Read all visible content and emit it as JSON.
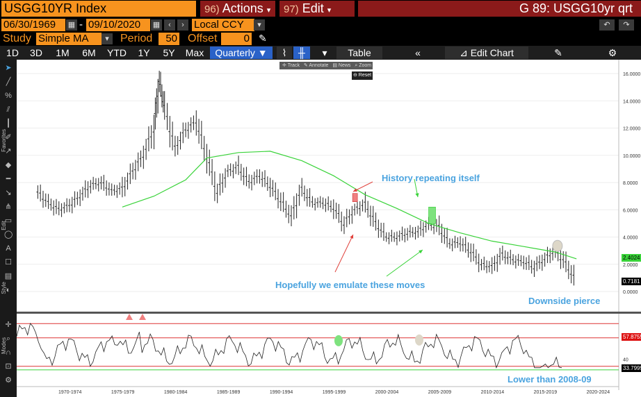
{
  "header": {
    "ticker": "USGG10YR Index",
    "actions_num": "96)",
    "actions_label": "Actions",
    "edit_num": "97)",
    "edit_label": "Edit",
    "screen_title": "G 89: USGG10yr qrt"
  },
  "dates": {
    "start": "06/30/1969",
    "sep": "-",
    "end": "09/10/2020",
    "currency": "Local CCY"
  },
  "study": {
    "label": "Study",
    "value": "Simple MA",
    "period_label": "Period",
    "period_value": "50",
    "offset_label": "Offset",
    "offset_value": "0"
  },
  "timeframes": [
    "1D",
    "3D",
    "1M",
    "6M",
    "YTD",
    "1Y",
    "5Y",
    "Max"
  ],
  "frequency": "Quarterly",
  "table_label": "Table",
  "edit_chart_label": "Edit Chart",
  "minitoolbar": {
    "track": "Track",
    "annotate": "Annotate",
    "news": "News",
    "zoom": "Zoom",
    "reset": "Reset"
  },
  "left_tool_labels": {
    "favorites": "Favorites",
    "edit": "Edit",
    "style": "Style",
    "modes": "Modes"
  },
  "annotations": {
    "history": "History repeating itself",
    "hopefully": "Hopefully we emulate these moves",
    "downside": "Downside pierce",
    "lower": "Lower than 2008-09"
  },
  "price_axis": [
    "16.0000",
    "14.0000",
    "12.0000",
    "10.0000",
    "8.0000",
    "6.0000",
    "4.0000",
    "2.0000",
    "0.0000"
  ],
  "last_price_badges": {
    "ma": "2.4024",
    "price": "0.7181"
  },
  "rsi_badges": {
    "upper": "57.8755",
    "lower": "33.7999",
    "mid_tick": "40"
  },
  "x_axis_labels": [
    "1970-1974",
    "1975-1979",
    "1980-1984",
    "1985-1989",
    "1990-1994",
    "1995-1999",
    "2000-2004",
    "2005-2009",
    "2010-2014",
    "2015-2019",
    "2020-2024"
  ],
  "colors": {
    "orange": "#f7931e",
    "red_button": "#8b1a1a",
    "active_tab": "#2a62c8",
    "ma_line": "#39d339",
    "annotation": "#4aa3df"
  },
  "chart_data": {
    "type": "line",
    "title": "",
    "ylim": [
      0,
      16
    ],
    "series": [
      {
        "x": [
          1969.5,
          1970.5,
          1971.5,
          1972.5,
          1973.5,
          1974.5,
          1975.5,
          1976.5,
          1977.5,
          1978.5,
          1979.5,
          1980.5,
          1981.0,
          1981.5,
          1982.5,
          1983.5,
          1984.5,
          1985.5,
          1986.5,
          1987.5,
          1988.5,
          1989.5,
          1990.5,
          1991.5,
          1992.5,
          1993.5,
          1994.5,
          1995.5,
          1996.5,
          1997.5,
          1998.5,
          1999.5,
          2000.5,
          2001.5,
          2002.5,
          2003.5,
          2004.5,
          2005.5,
          2006.5,
          2007.5,
          2008.5,
          2009.5,
          2010.5,
          2011.5,
          2012.5,
          2013.5,
          2014.5,
          2015.5,
          2016.5,
          2017.5,
          2018.5,
          2019.5,
          2020.5
        ],
        "values": [
          7.3,
          6.5,
          6.0,
          6.3,
          7.0,
          7.8,
          8.0,
          7.4,
          7.5,
          8.8,
          10.0,
          12.0,
          15.5,
          13.5,
          10.5,
          11.8,
          12.5,
          10.0,
          7.3,
          8.8,
          9.1,
          8.0,
          8.5,
          7.8,
          6.7,
          5.5,
          7.5,
          6.5,
          6.5,
          6.2,
          5.0,
          6.0,
          6.4,
          5.0,
          4.0,
          4.0,
          4.3,
          4.4,
          4.9,
          4.7,
          3.5,
          3.6,
          3.0,
          2.0,
          1.8,
          2.7,
          2.3,
          2.2,
          1.8,
          2.4,
          3.0,
          2.0,
          0.7
        ]
      },
      {
        "x": [
          1977.5,
          1980.5,
          1983.5,
          1985.5,
          1988.5,
          1991.5,
          1994.5,
          1997.5,
          2000.5,
          2003.5,
          2006.5,
          2009.5,
          2012.5,
          2015.5,
          2018.5,
          2020.5
        ],
        "values": [
          6.2,
          7.0,
          8.2,
          9.8,
          10.2,
          10.3,
          9.6,
          8.5,
          7.1,
          6.1,
          5.0,
          4.3,
          3.7,
          3.3,
          2.9,
          2.4
        ]
      }
    ]
  }
}
